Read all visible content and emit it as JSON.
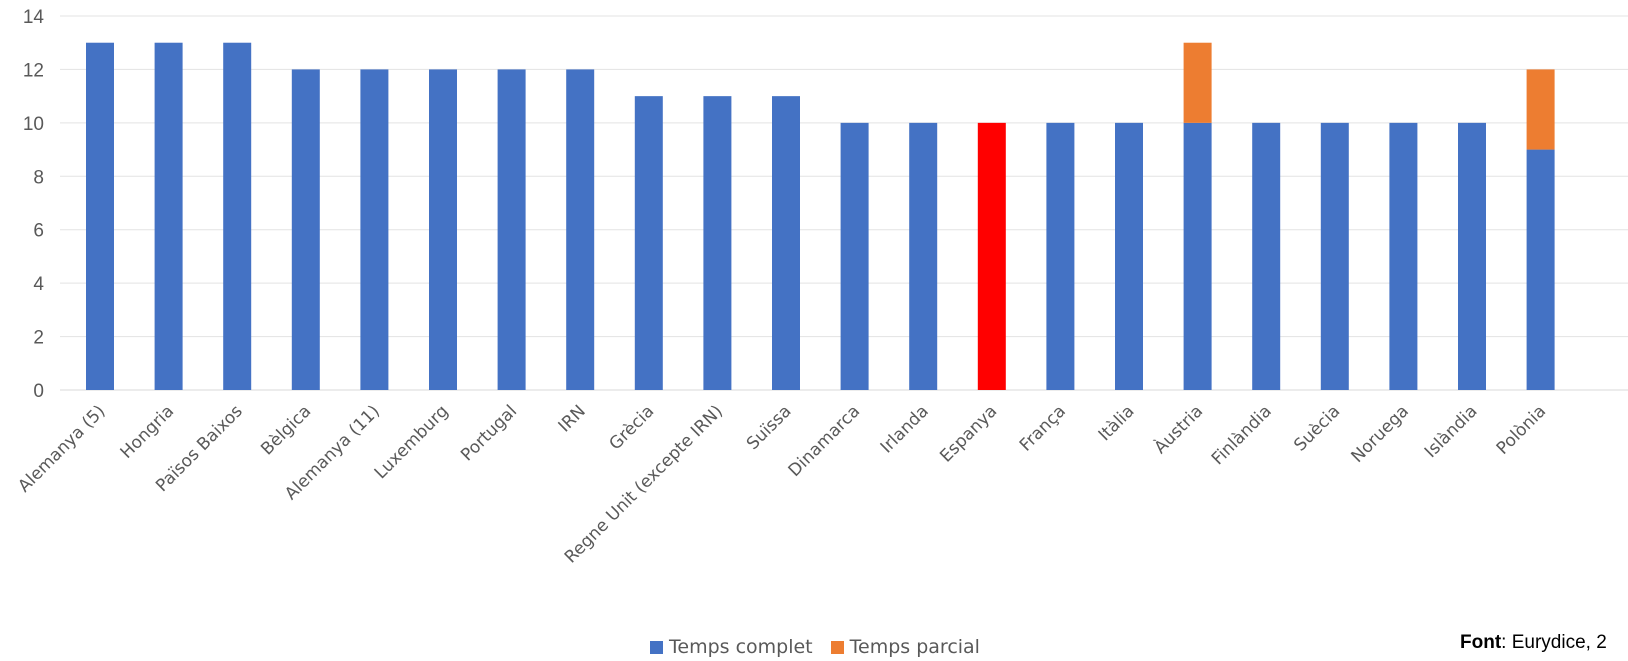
{
  "chart_data": {
    "type": "bar",
    "stacked": true,
    "categories": [
      "Alemanya (5)",
      "Hongria",
      "Països Baixos",
      "Bèlgica",
      "Alemanya (11)",
      "Luxemburg",
      "Portugal",
      "IRN",
      "Grècia",
      "Regne Unit (excepte IRN)",
      "Suïssa",
      "Dinamarca",
      "Irlanda",
      "Espanya",
      "França",
      "Itàlia",
      "Àustria",
      "Finlàndia",
      "Suècia",
      "Noruega",
      "Islàndia",
      "Polònia"
    ],
    "series": [
      {
        "name": "Temps complet",
        "color": "#4472C4",
        "values": [
          13,
          13,
          13,
          12,
          12,
          12,
          12,
          12,
          11,
          11,
          11,
          10,
          10,
          10,
          10,
          10,
          10,
          10,
          10,
          10,
          10,
          9
        ]
      },
      {
        "name": "Temps parcial",
        "color": "#ED7D31",
        "values": [
          0,
          0,
          0,
          0,
          0,
          0,
          0,
          0,
          0,
          0,
          0,
          0,
          0,
          0,
          0,
          0,
          3,
          0,
          0,
          0,
          0,
          3
        ]
      }
    ],
    "highlight": {
      "category": "Espanya",
      "color": "#FF0000"
    },
    "yticks": [
      0,
      2,
      4,
      6,
      8,
      10,
      12,
      14
    ],
    "ylim": [
      0,
      14
    ],
    "grid": true,
    "legend_position": "bottom"
  },
  "source": {
    "label": "Font",
    "text": ": Eurydice,  2"
  }
}
